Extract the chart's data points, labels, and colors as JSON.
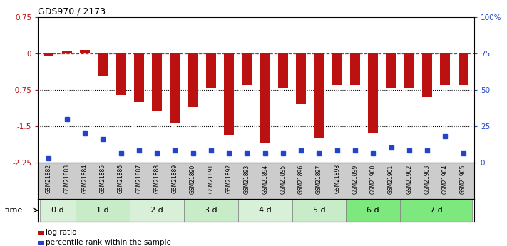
{
  "title": "GDS970 / 2173",
  "samples": [
    "GSM21882",
    "GSM21883",
    "GSM21884",
    "GSM21885",
    "GSM21886",
    "GSM21887",
    "GSM21888",
    "GSM21889",
    "GSM21890",
    "GSM21891",
    "GSM21892",
    "GSM21893",
    "GSM21894",
    "GSM21895",
    "GSM21896",
    "GSM21897",
    "GSM21898",
    "GSM21899",
    "GSM21900",
    "GSM21901",
    "GSM21902",
    "GSM21903",
    "GSM21904",
    "GSM21905"
  ],
  "log_ratio": [
    -0.05,
    0.05,
    0.08,
    -0.45,
    -0.85,
    -1.0,
    -1.2,
    -1.45,
    -1.1,
    -0.7,
    -1.7,
    -0.65,
    -1.85,
    -0.7,
    -1.05,
    -1.75,
    -0.65,
    -0.65,
    -1.65,
    -0.7,
    -0.7,
    -0.9,
    -0.65,
    -0.65
  ],
  "percentile": [
    3,
    30,
    20,
    16,
    6,
    8,
    6,
    8,
    6,
    8,
    6,
    6,
    6,
    6,
    8,
    6,
    8,
    8,
    6,
    10,
    8,
    8,
    18,
    6
  ],
  "time_groups": [
    {
      "label": "0 d",
      "start": 0,
      "end": 2,
      "color": "#d8f0d8"
    },
    {
      "label": "1 d",
      "start": 2,
      "end": 5,
      "color": "#c8ecc8"
    },
    {
      "label": "2 d",
      "start": 5,
      "end": 8,
      "color": "#d8f0d8"
    },
    {
      "label": "3 d",
      "start": 8,
      "end": 11,
      "color": "#c8ecc8"
    },
    {
      "label": "4 d",
      "start": 11,
      "end": 14,
      "color": "#d8f0d8"
    },
    {
      "label": "5 d",
      "start": 14,
      "end": 17,
      "color": "#c8ecc8"
    },
    {
      "label": "6 d",
      "start": 17,
      "end": 20,
      "color": "#7de87d"
    },
    {
      "label": "7 d",
      "start": 20,
      "end": 24,
      "color": "#7de87d"
    }
  ],
  "ylim": [
    -2.25,
    0.75
  ],
  "yticks": [
    0.75,
    0.0,
    -0.75,
    -1.5,
    -2.25
  ],
  "ytick_labels": [
    "0.75",
    "0",
    "-0.75",
    "-1.5",
    "-2.25"
  ],
  "right_ytick_pcts": [
    100,
    75,
    50,
    25,
    0
  ],
  "right_ytick_labels": [
    "100%",
    "75",
    "50",
    "25",
    "0"
  ],
  "bar_color": "#bb1111",
  "dot_color": "#2244cc",
  "dotted_lines": [
    -0.75,
    -1.5
  ],
  "legend_labels": [
    "log ratio",
    "percentile rank within the sample"
  ],
  "legend_colors": [
    "#bb1111",
    "#2244cc"
  ],
  "sample_band_color": "#cccccc"
}
